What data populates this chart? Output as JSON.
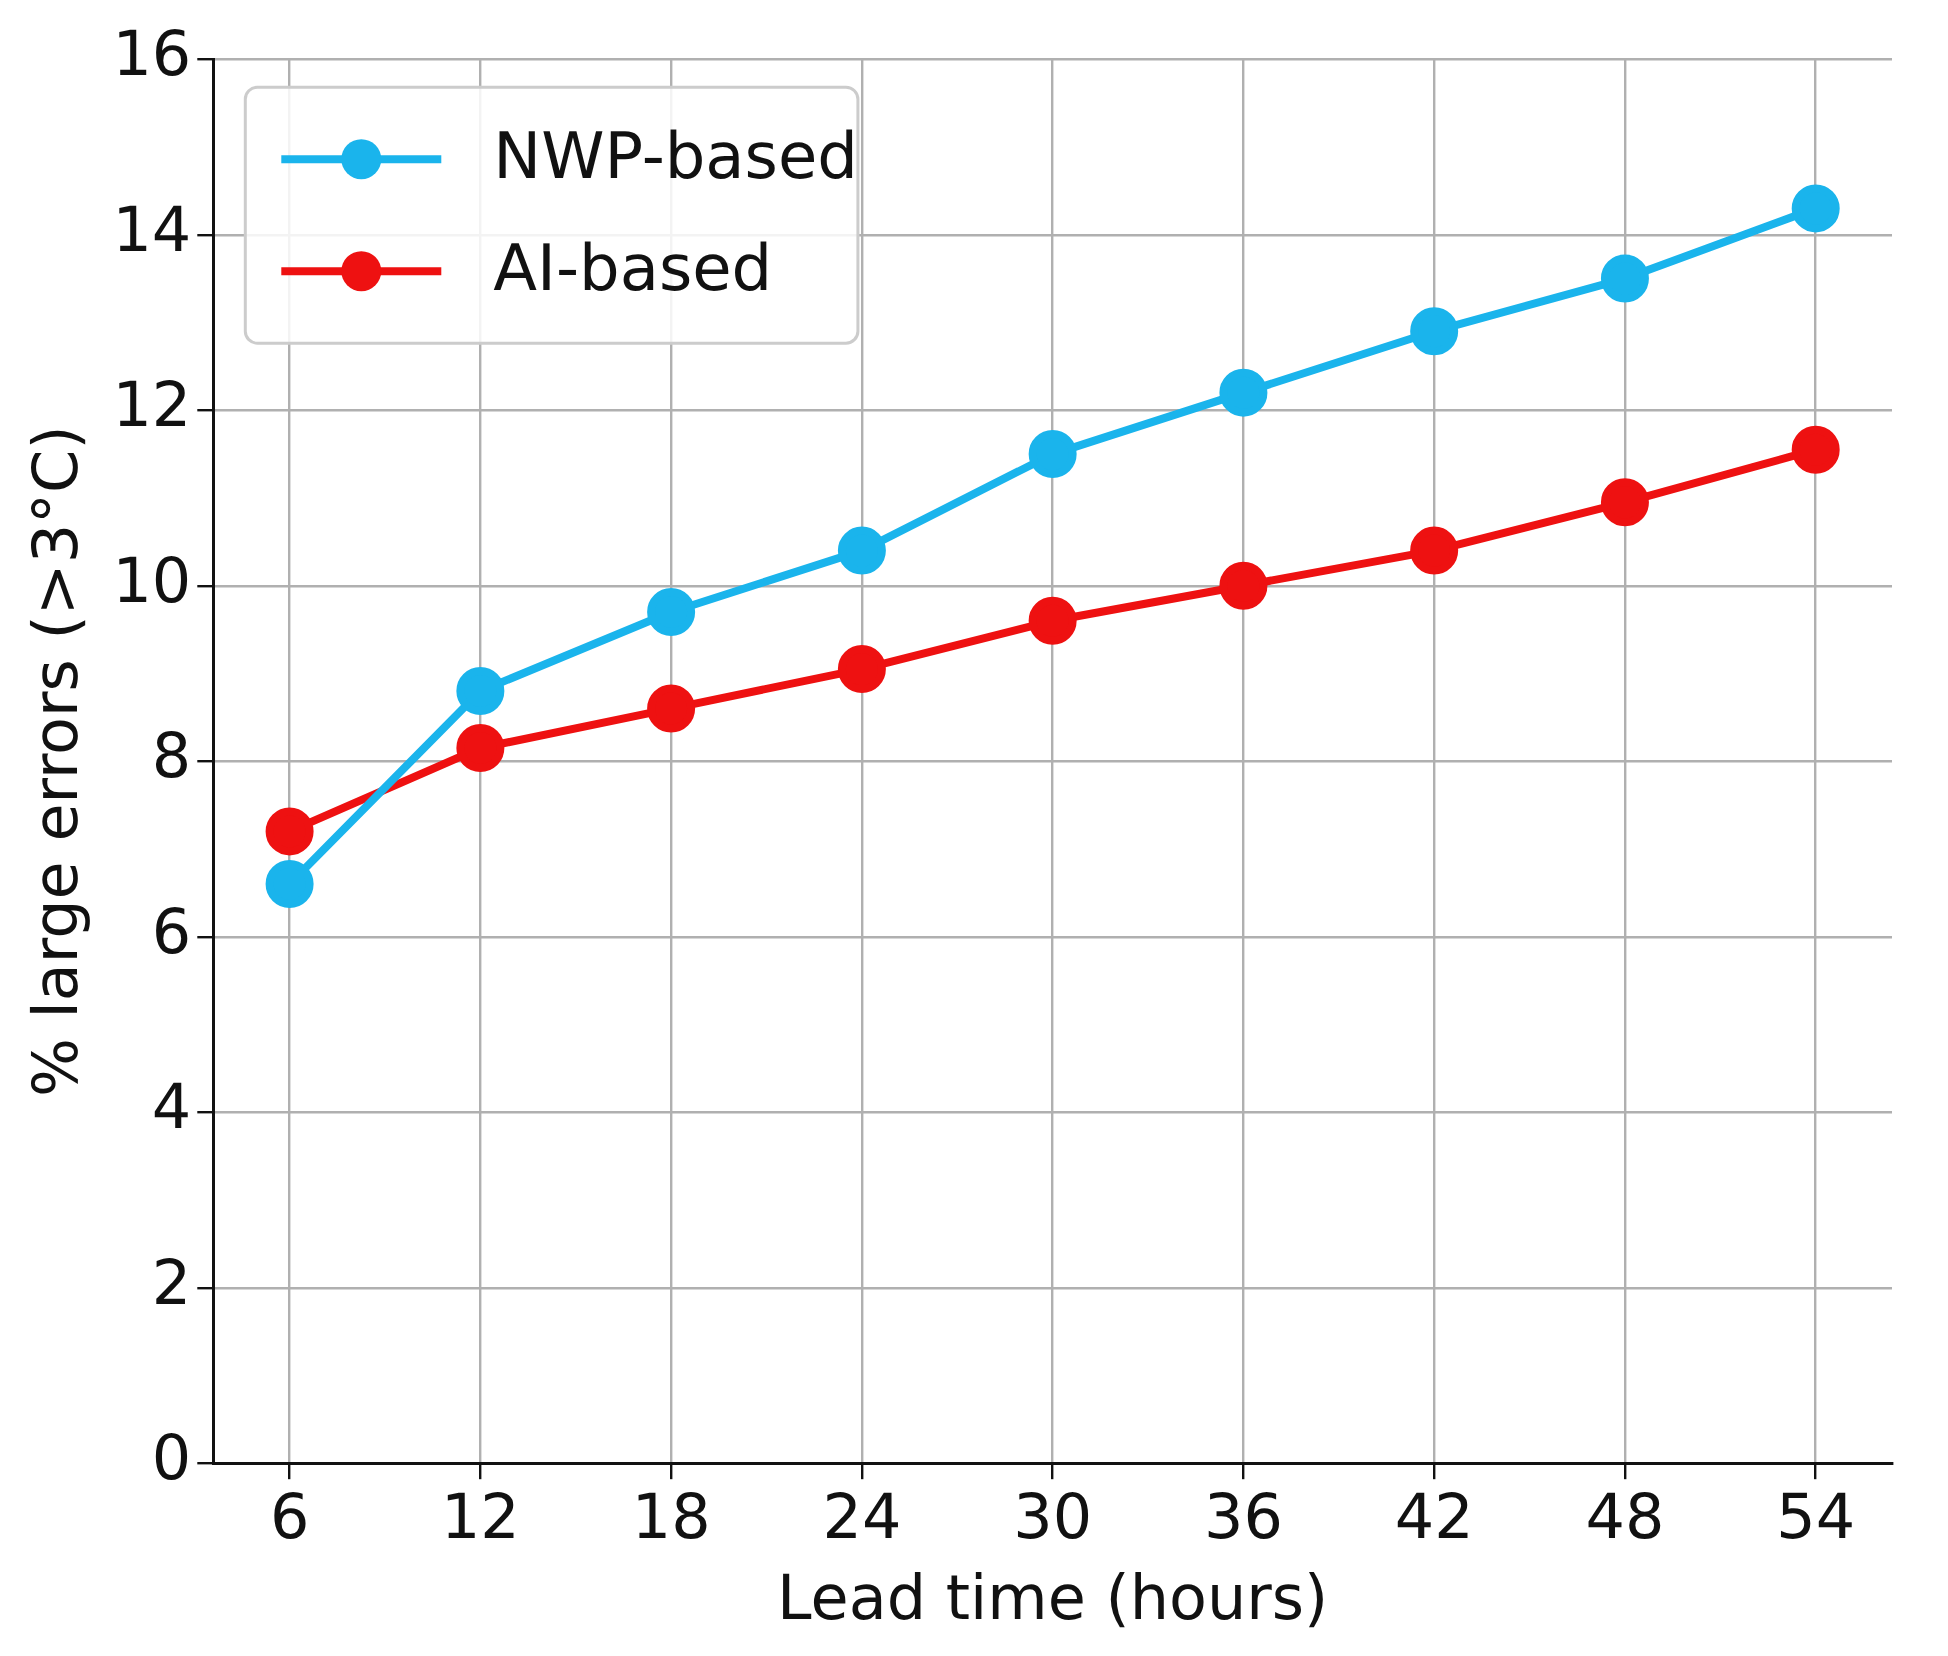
{
  "chart_data": {
    "type": "line",
    "xlabel": "Lead time (hours)",
    "ylabel": "% large errors (>3°C)",
    "x": [
      6,
      12,
      18,
      24,
      30,
      36,
      42,
      48,
      54
    ],
    "series": [
      {
        "name": "NWP-based",
        "color": "#1ab4ec",
        "values": [
          6.6,
          8.8,
          9.7,
          10.4,
          11.5,
          12.2,
          12.9,
          13.5,
          14.3
        ]
      },
      {
        "name": "AI-based",
        "color": "#ee1111",
        "values": [
          7.2,
          8.15,
          8.6,
          9.05,
          9.6,
          10.0,
          10.4,
          10.95,
          11.55
        ]
      }
    ],
    "xlim": [
      3.6,
      56.4
    ],
    "xticks": [
      6,
      12,
      18,
      24,
      30,
      36,
      42,
      48,
      54
    ],
    "ylim": [
      0,
      16
    ],
    "yticks": [
      0,
      2,
      4,
      6,
      8,
      10,
      12,
      14,
      16
    ],
    "grid": true,
    "legend": "top left",
    "marker": "circle",
    "line_style": "solid"
  }
}
